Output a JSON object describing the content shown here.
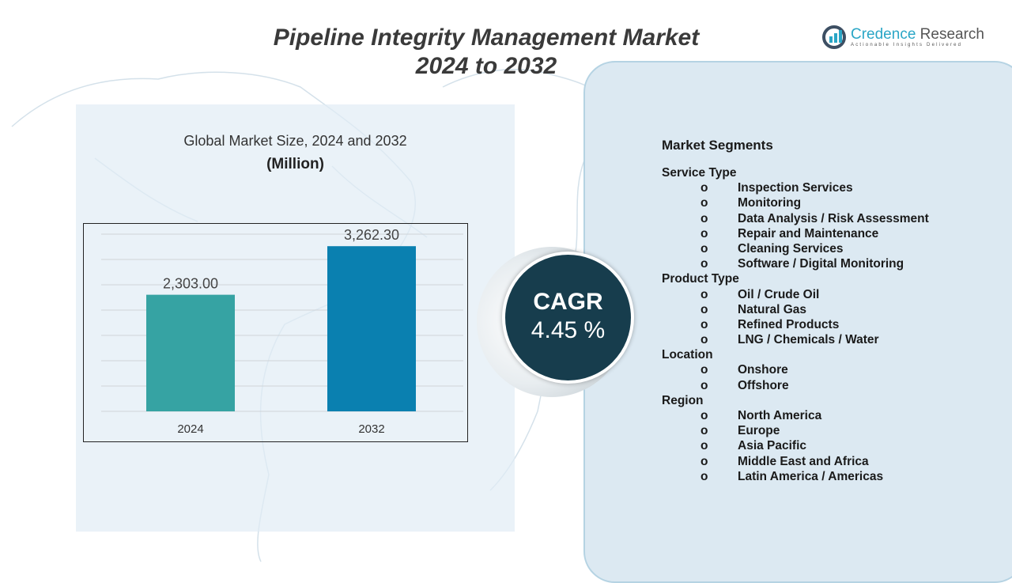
{
  "title_line1": "Pipeline Integrity Management Market",
  "title_line2": "2024 to 2032",
  "logo": {
    "name_part1": "Credence",
    "name_part2": "Research",
    "tagline": "Actionable Insights Delivered"
  },
  "chart_data": {
    "type": "bar",
    "title": "Global Market Size, 2024 and 2032",
    "subtitle": "(Million)",
    "categories": [
      "2024",
      "2032"
    ],
    "values": [
      2303.0,
      3262.3
    ],
    "data_labels": [
      "2,303.00",
      "3,262.30"
    ],
    "colors": [
      "#36a3a3",
      "#0a80b0"
    ],
    "ylim": [
      0,
      3500
    ],
    "grid": true,
    "gridline_step": 500
  },
  "cagr": {
    "label": "CAGR",
    "value": "4.45 %"
  },
  "segments": {
    "heading": "Market Segments",
    "bullet": "o",
    "groups": [
      {
        "name": "Service Type",
        "items": [
          "Inspection Services",
          "Monitoring",
          "Data Analysis / Risk Assessment",
          "Repair and Maintenance",
          "Cleaning Services",
          "Software / Digital Monitoring"
        ]
      },
      {
        "name": "Product Type",
        "items": [
          "Oil / Crude Oil",
          "Natural Gas",
          "Refined Products",
          "LNG / Chemicals / Water"
        ]
      },
      {
        "name": "Location",
        "items": [
          "Onshore",
          "Offshore"
        ]
      },
      {
        "name": "Region",
        "items": [
          "North America",
          "Europe",
          "Asia Pacific",
          "Middle East and Africa",
          "Latin America / Americas"
        ]
      }
    ]
  }
}
